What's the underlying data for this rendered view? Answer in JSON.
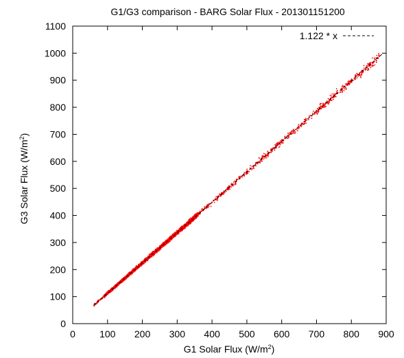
{
  "chart_data": {
    "type": "scatter",
    "title": "G1/G3 comparison - BARG Solar Flux - 201301151200",
    "xlabel": "G1 Solar Flux (W/m",
    "ylabel": "G3 Solar Flux (W/m",
    "label_superscript": "2",
    "label_close": ")",
    "xlim": [
      0,
      900
    ],
    "ylim": [
      0,
      1100
    ],
    "x_ticks": [
      "0",
      "100",
      "200",
      "300",
      "400",
      "500",
      "600",
      "700",
      "800",
      "900"
    ],
    "y_ticks": [
      "0",
      "100",
      "200",
      "300",
      "400",
      "500",
      "600",
      "700",
      "800",
      "900",
      "1000",
      "1100"
    ],
    "grid": false,
    "legend_position": "top-right",
    "fit_line": {
      "label": "1.122 * x",
      "slope": 1.122,
      "x_range": [
        60,
        890
      ],
      "style": "dashed",
      "color": "#000000"
    },
    "series": [
      {
        "marker_color": "#ff0000",
        "x_range": [
          60,
          880
        ],
        "x": [
          62,
          70,
          80,
          90,
          100,
          110,
          120,
          130,
          140,
          150,
          160,
          170,
          180,
          190,
          200,
          210,
          220,
          230,
          240,
          250,
          260,
          270,
          280,
          290,
          300,
          310,
          320,
          330,
          340,
          350,
          360,
          370,
          380,
          390,
          400,
          410,
          420,
          430,
          440,
          450,
          460,
          470,
          480,
          490,
          500,
          510,
          520,
          530,
          540,
          550,
          560,
          570,
          580,
          590,
          600,
          620,
          640,
          660,
          680,
          700,
          720,
          740,
          760,
          780,
          800,
          830,
          860,
          880
        ],
        "y": [
          70,
          80,
          88,
          100,
          112,
          125,
          134,
          146,
          157,
          168,
          180,
          190,
          202,
          214,
          224,
          236,
          247,
          258,
          270,
          280,
          292,
          302,
          314,
          326,
          336,
          348,
          360,
          370,
          382,
          392,
          404,
          415,
          427,
          437,
          449,
          460,
          471,
          483,
          494,
          505,
          516,
          527,
          539,
          550,
          561,
          572,
          583,
          595,
          606,
          617,
          628,
          640,
          651,
          662,
          673,
          696,
          718,
          741,
          763,
          786,
          808,
          830,
          853,
          876,
          898,
          931,
          965,
          988
        ]
      }
    ]
  }
}
